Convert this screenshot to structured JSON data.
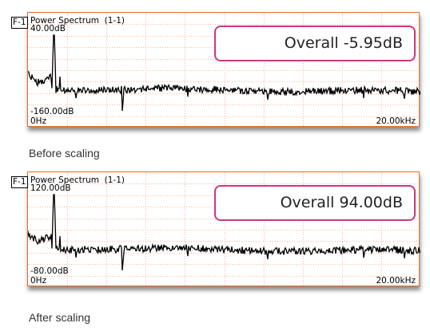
{
  "panels": [
    {
      "badge": "F-1",
      "title": "Power Spectrum  (1-1)",
      "y_top": "40.00dB",
      "y_bottom": "-160.00dB",
      "x_left": "0Hz",
      "x_right": "20.00kHz",
      "overall": "Overall -5.95dB",
      "caption": "Before scaling"
    },
    {
      "badge": "F-1",
      "title": "Power Spectrum  (1-1)",
      "y_top": "120.00dB",
      "y_bottom": "-80.00dB",
      "x_left": "0Hz",
      "x_right": "20.00kHz",
      "overall": "Overall 94.00dB",
      "caption": "After scaling"
    }
  ],
  "colors": {
    "frame": "#e86d2a",
    "grid": "#f4b8a0",
    "trace": "#000000",
    "overall_border": "#c8387f"
  }
}
